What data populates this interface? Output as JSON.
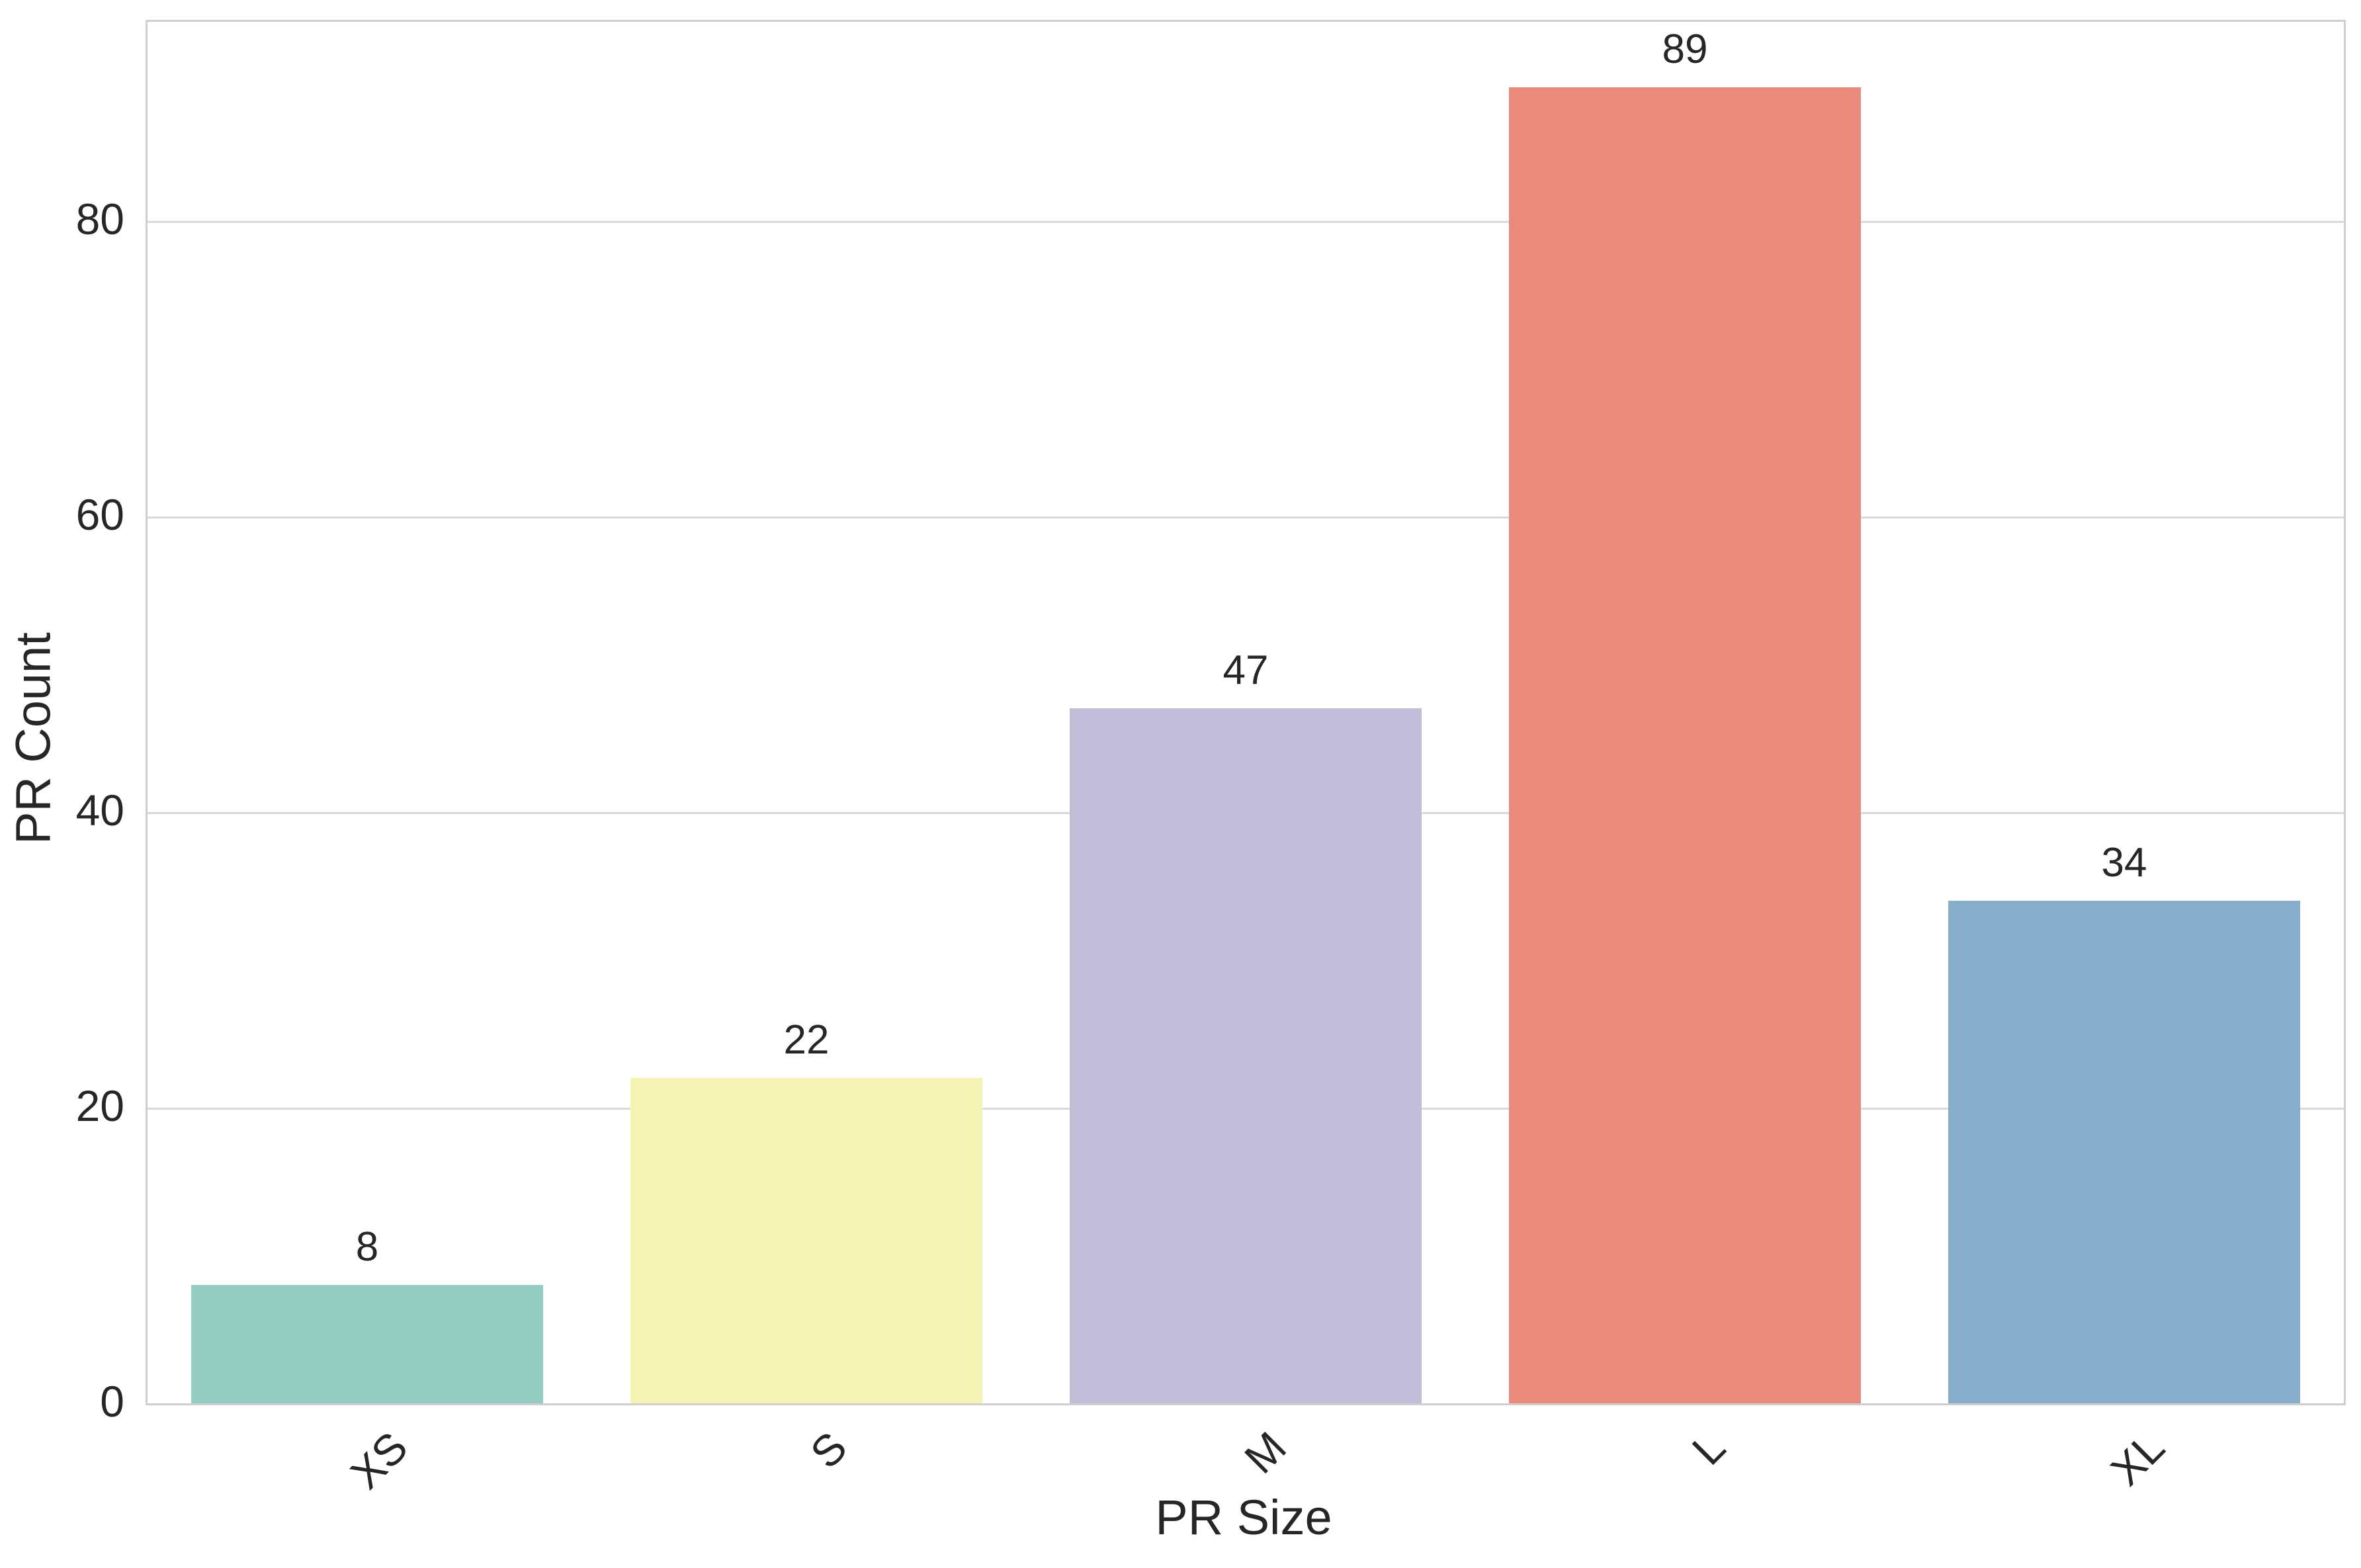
{
  "chart_data": {
    "type": "bar",
    "title": "",
    "xlabel": "PR Size",
    "ylabel": "PR Count",
    "categories": [
      "XS",
      "S",
      "M",
      "L",
      "XL"
    ],
    "values": [
      8,
      22,
      47,
      89,
      34
    ],
    "bar_value_labels": [
      "8",
      "22",
      "47",
      "89",
      "34"
    ],
    "bar_colors": [
      "#94CCC2",
      "#F3F3B4",
      "#C2BED9",
      "#EA8A7D",
      "#87AECB"
    ],
    "ytick_values": [
      0,
      20,
      40,
      60,
      80
    ],
    "ytick_labels": [
      "0",
      "20",
      "40",
      "60",
      "80"
    ],
    "ylim": [
      0,
      93.45
    ],
    "xtick_rotation_deg": 45,
    "grid": "horizontal-only",
    "legend": "none",
    "colors": {
      "text": "#262626",
      "grid": "#d9d9d9",
      "spine": "#cfcfcf",
      "background": "#ffffff"
    }
  }
}
